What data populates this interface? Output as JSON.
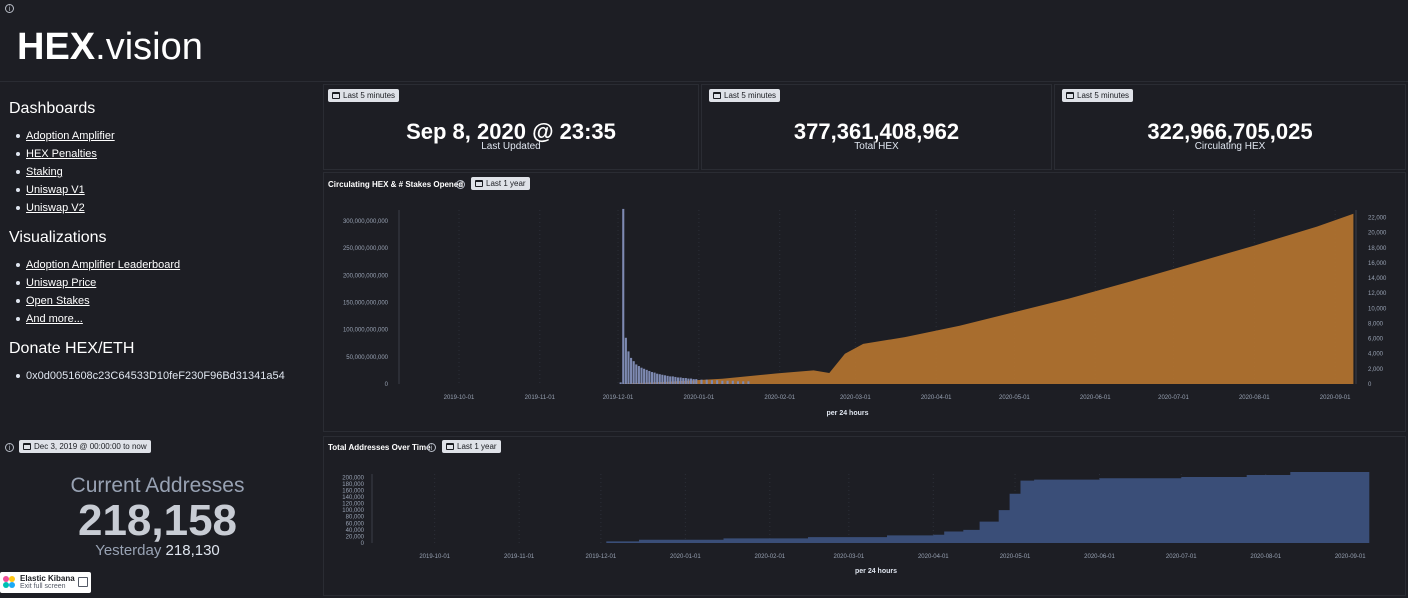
{
  "header": {
    "brand_bold": "HEX",
    "brand_rest": ".vision"
  },
  "sidebar": {
    "dashboards_heading": "Dashboards",
    "dashboards": [
      "Adoption Amplifier",
      "HEX Penalties",
      "Staking",
      "Uniswap V1",
      "Uniswap V2"
    ],
    "visualizations_heading": "Visualizations",
    "visualizations": [
      "Adoption Amplifier Leaderboard",
      "Uniswap Price",
      "Open Stakes",
      "And more..."
    ],
    "donate_heading": "Donate HEX/ETH",
    "donate_address": "0x0d0051608c23C64533D10feF230F96Bd31341a54"
  },
  "metrics": [
    {
      "time_badge": "Last 5 minutes",
      "value": "Sep 8, 2020 @ 23:35",
      "label": "Last Updated"
    },
    {
      "time_badge": "Last 5 minutes",
      "value": "377,361,408,962",
      "label": "Total HEX"
    },
    {
      "time_badge": "Last 5 minutes",
      "value": "322,966,705,025",
      "label": "Circulating HEX"
    }
  ],
  "addresses": {
    "time_badge": "Dec 3, 2019 @ 00:00:00 to now",
    "title": "Current Addresses",
    "value": "218,158",
    "yesterday_label": "Yesterday",
    "yesterday_value": "218,130"
  },
  "kibana": {
    "title": "Elastic Kibana",
    "action": "Exit full screen"
  },
  "colors": {
    "background": "#1d1e24",
    "orange_area": "#b0722f",
    "blue_area": "#3a4e78",
    "bars": "#7e8ab2"
  },
  "chart_data": [
    {
      "type": "bar",
      "title": "Circulating HEX & # Stakes Opened",
      "time_badge": "Last 1 year",
      "xlabel": "per 24 hours",
      "x_ticks": [
        "2019-10-01",
        "2019-11-01",
        "2019-12-01",
        "2020-01-01",
        "2020-02-01",
        "2020-03-01",
        "2020-04-01",
        "2020-05-01",
        "2020-06-01",
        "2020-07-01",
        "2020-08-01",
        "2020-09-01"
      ],
      "left_ticks": [
        "0",
        "50,000,000,000",
        "100,000,000,000",
        "150,000,000,000",
        "200,000,000,000",
        "250,000,000,000",
        "300,000,000,000"
      ],
      "right_ticks": [
        "0",
        "2,000",
        "4,000",
        "6,000",
        "8,000",
        "10,000",
        "12,000",
        "14,000",
        "16,000",
        "18,000",
        "20,000",
        "22,000"
      ],
      "left_ylim": [
        0,
        320000000000
      ],
      "right_ylim": [
        0,
        23000
      ],
      "series": [
        {
          "chart": "area",
          "axis": "right",
          "color": "#b0722f",
          "points": [
            [
              "2019-12-03",
              50
            ],
            [
              "2019-12-20",
              300
            ],
            [
              "2020-01-10",
              700
            ],
            [
              "2020-01-31",
              1400
            ],
            [
              "2020-02-14",
              1800
            ],
            [
              "2020-02-20",
              1450
            ],
            [
              "2020-02-26",
              4000
            ],
            [
              "2020-03-04",
              5300
            ],
            [
              "2020-03-20",
              6200
            ],
            [
              "2020-04-10",
              7700
            ],
            [
              "2020-05-01",
              9500
            ],
            [
              "2020-05-22",
              11300
            ],
            [
              "2020-06-15",
              13600
            ],
            [
              "2020-07-08",
              15900
            ],
            [
              "2020-08-01",
              18300
            ],
            [
              "2020-08-25",
              20800
            ],
            [
              "2020-09-08",
              22500
            ]
          ]
        },
        {
          "chart": "bar",
          "axis": "left",
          "color": "#7e8ab2",
          "points": [
            [
              "2019-12-02",
              3000000000
            ],
            [
              "2019-12-03",
              322000000000
            ],
            [
              "2019-12-04",
              85000000000
            ],
            [
              "2019-12-05",
              60000000000
            ],
            [
              "2019-12-06",
              48000000000
            ],
            [
              "2019-12-07",
              42000000000
            ],
            [
              "2019-12-08",
              36000000000
            ],
            [
              "2019-12-09",
              33000000000
            ],
            [
              "2019-12-10",
              30000000000
            ],
            [
              "2019-12-11",
              28000000000
            ],
            [
              "2019-12-12",
              26000000000
            ],
            [
              "2019-12-13",
              24000000000
            ],
            [
              "2019-12-14",
              22000000000
            ],
            [
              "2019-12-15",
              21000000000
            ],
            [
              "2019-12-16",
              19000000000
            ],
            [
              "2019-12-17",
              18000000000
            ],
            [
              "2019-12-18",
              17000000000
            ],
            [
              "2019-12-19",
              16000000000
            ],
            [
              "2019-12-20",
              15000000000
            ],
            [
              "2019-12-21",
              14000000000
            ],
            [
              "2019-12-22",
              14000000000
            ],
            [
              "2019-12-23",
              13000000000
            ],
            [
              "2019-12-24",
              12000000000
            ],
            [
              "2019-12-25",
              12000000000
            ],
            [
              "2019-12-26",
              11000000000
            ],
            [
              "2019-12-27",
              11000000000
            ],
            [
              "2019-12-28",
              10000000000
            ],
            [
              "2019-12-29",
              10000000000
            ],
            [
              "2019-12-30",
              9000000000
            ],
            [
              "2019-12-31",
              9000000000
            ],
            [
              "2020-01-02",
              8000000000
            ],
            [
              "2020-01-04",
              8000000000
            ],
            [
              "2020-01-06",
              7000000000
            ],
            [
              "2020-01-08",
              7000000000
            ],
            [
              "2020-01-10",
              6000000000
            ],
            [
              "2020-01-12",
              6000000000
            ],
            [
              "2020-01-14",
              6000000000
            ],
            [
              "2020-01-16",
              5000000000
            ],
            [
              "2020-01-18",
              5000000000
            ],
            [
              "2020-01-20",
              5000000000
            ]
          ]
        }
      ]
    },
    {
      "type": "area",
      "title": "Total Addresses Over Time",
      "time_badge": "Last 1 year",
      "xlabel": "per 24 hours",
      "x_ticks": [
        "2019-10-01",
        "2019-11-01",
        "2019-12-01",
        "2020-01-01",
        "2020-02-01",
        "2020-03-01",
        "2020-04-01",
        "2020-05-01",
        "2020-06-01",
        "2020-07-01",
        "2020-08-01",
        "2020-09-01"
      ],
      "y_ticks": [
        "0",
        "20,000",
        "40,000",
        "60,000",
        "80,000",
        "100,000",
        "120,000",
        "140,000",
        "160,000",
        "180,000",
        "200,000"
      ],
      "ylim": [
        0,
        210000
      ],
      "series": [
        {
          "color": "#3a4e78",
          "points": [
            [
              "2019-12-03",
              5000
            ],
            [
              "2019-12-15",
              10000
            ],
            [
              "2020-01-15",
              14000
            ],
            [
              "2020-02-15",
              18000
            ],
            [
              "2020-03-15",
              23000
            ],
            [
              "2020-04-01",
              25000
            ],
            [
              "2020-04-05",
              35000
            ],
            [
              "2020-04-12",
              40000
            ],
            [
              "2020-04-18",
              65000
            ],
            [
              "2020-04-25",
              100000
            ],
            [
              "2020-04-29",
              150000
            ],
            [
              "2020-05-03",
              190000
            ],
            [
              "2020-05-08",
              193000
            ],
            [
              "2020-06-01",
              197000
            ],
            [
              "2020-07-01",
              201000
            ],
            [
              "2020-07-25",
              207000
            ],
            [
              "2020-08-10",
              216000
            ],
            [
              "2020-09-08",
              218158
            ]
          ]
        }
      ]
    }
  ]
}
